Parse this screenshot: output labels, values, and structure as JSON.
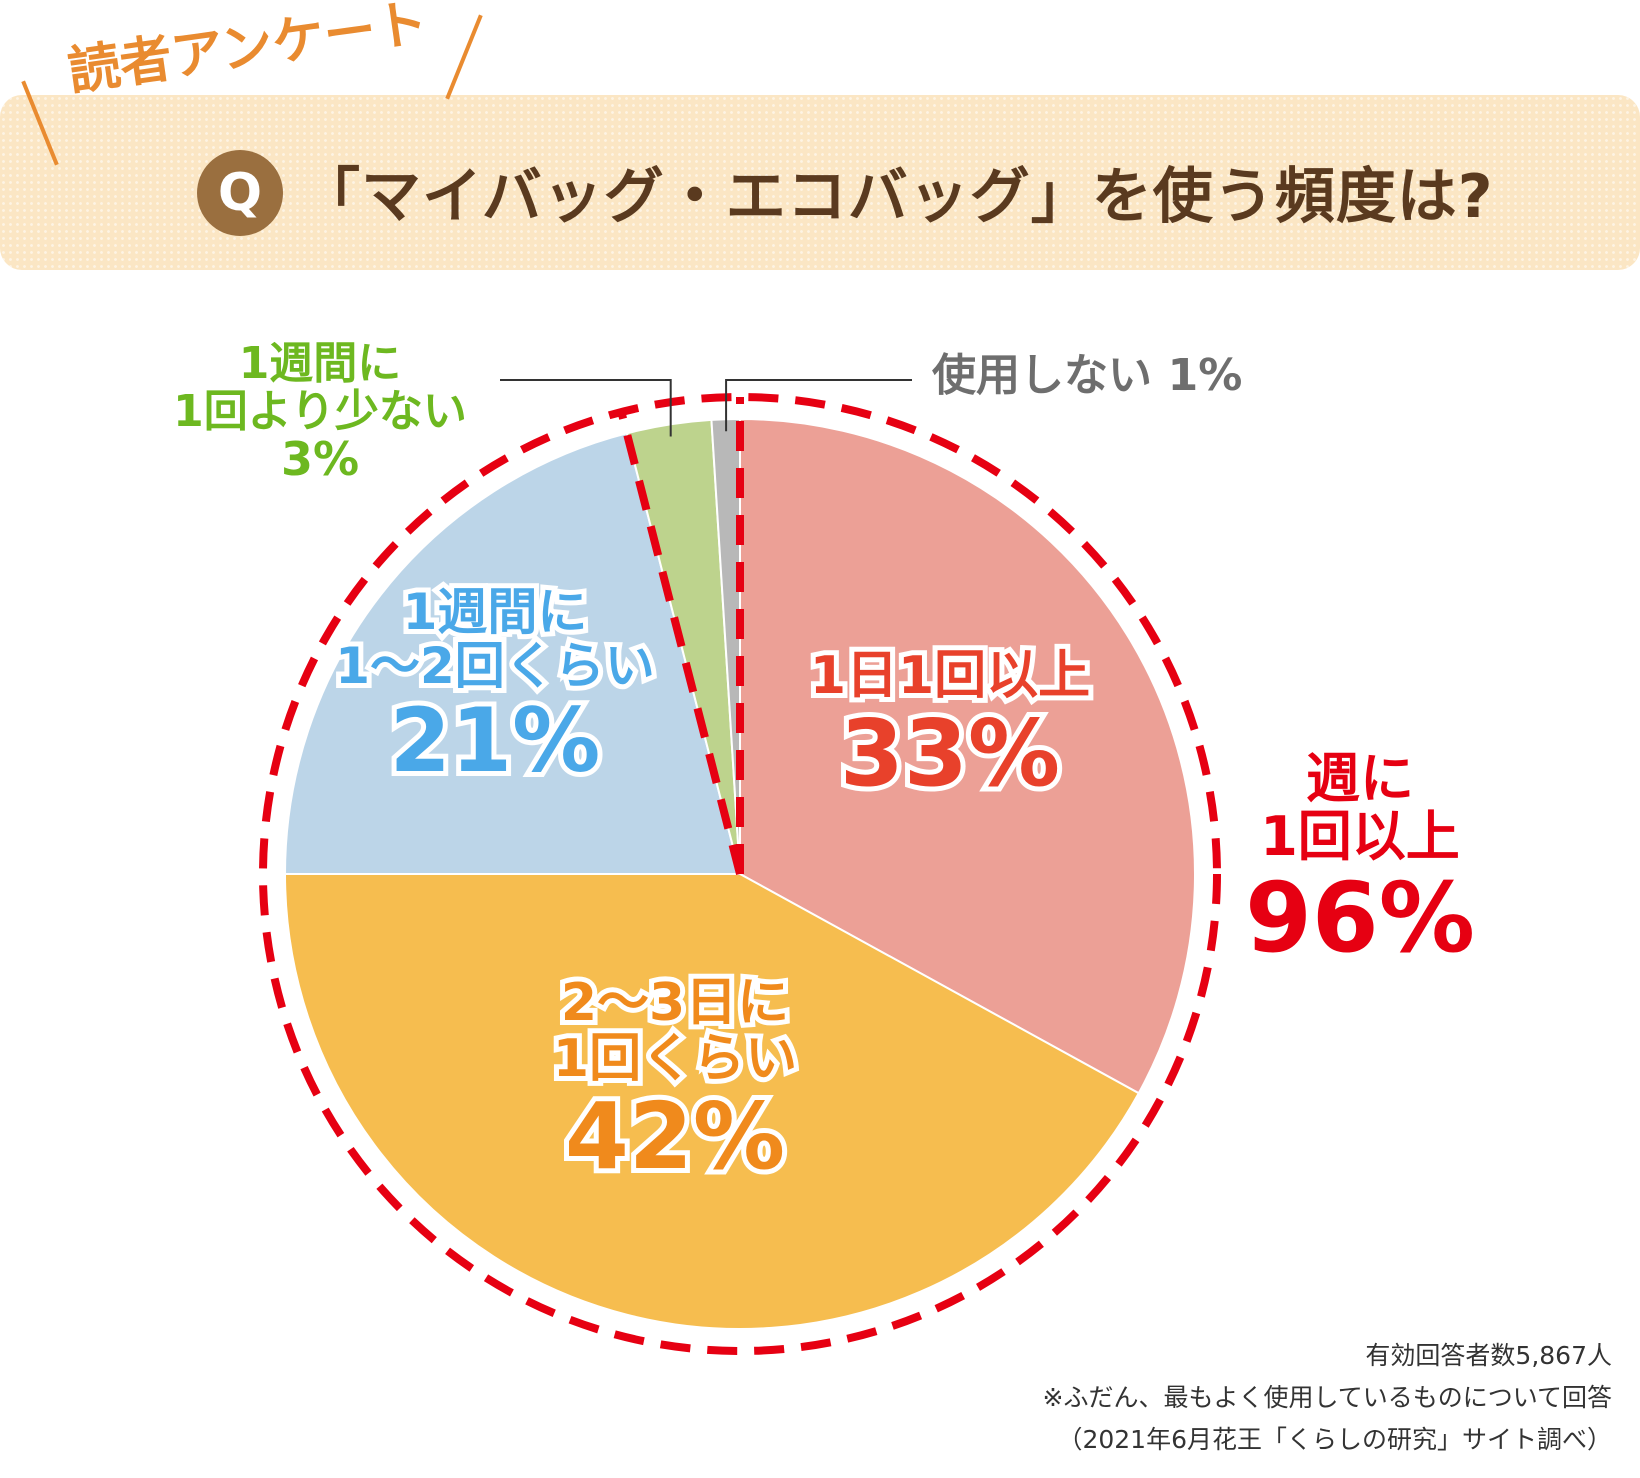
{
  "header": {
    "survey_tag": "読者アンケート",
    "q_mark": "Q",
    "question": "「マイバッグ・エコバッグ」を使う頻度は?"
  },
  "chart_data": {
    "type": "pie",
    "title": "「マイバッグ・エコバッグ」を使う頻度は?",
    "slices": [
      {
        "label_lines": [
          "1日1回以上"
        ],
        "value": 33,
        "value_text": "33%",
        "color": "#eca096",
        "label_color": "#e8412b"
      },
      {
        "label_lines": [
          "2〜3日に",
          "1回くらい"
        ],
        "value": 42,
        "value_text": "42%",
        "color": "#f6bd4f",
        "label_color": "#f08a1c"
      },
      {
        "label_lines": [
          "1週間に",
          "1〜2回くらい"
        ],
        "value": 21,
        "value_text": "21%",
        "color": "#bcd5e8",
        "label_color": "#4aa8e8"
      },
      {
        "label_lines": [
          "1週間に",
          "1回より少ない"
        ],
        "value": 3,
        "value_text": "3%",
        "color": "#bdd38d",
        "label_color": "#6db820"
      },
      {
        "label_lines": [
          "使用しない"
        ],
        "value": 1,
        "value_text": "1%",
        "color": "#b8b8b8",
        "label_color": "#6e6e6e"
      }
    ],
    "group": {
      "label_lines": [
        "週に",
        "1回以上"
      ],
      "value": 96,
      "value_text": "96%",
      "color": "#e60012"
    }
  },
  "notes": {
    "respondents": "有効回答者数5,867人",
    "basis": "※ふだん、最もよく使用しているものについて回答",
    "source": "（2021年6月花王「くらしの研究」サイト調べ）"
  }
}
